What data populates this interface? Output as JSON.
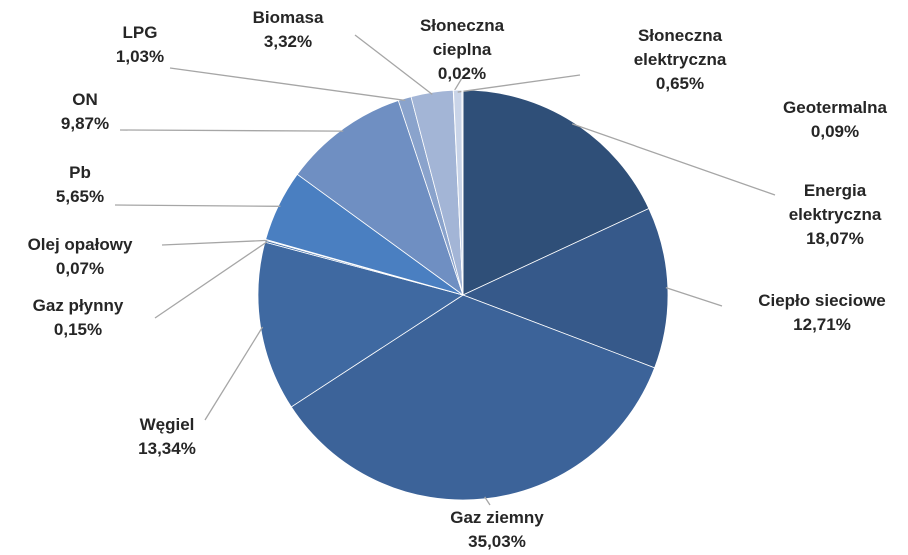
{
  "chart_data": {
    "type": "pie",
    "categories": [
      "Energia elektryczna",
      "Ciepło sieciowe",
      "Gaz ziemny",
      "Węgiel",
      "Gaz płynny",
      "Olej opałowy",
      "Pb",
      "ON",
      "LPG",
      "Biomasa",
      "Słoneczna cieplna",
      "Słoneczna elektryczna",
      "Geotermalna"
    ],
    "values": [
      18.07,
      12.71,
      35.03,
      13.34,
      0.15,
      0.07,
      5.65,
      9.87,
      1.03,
      3.32,
      0.02,
      0.65,
      0.09
    ],
    "value_labels": [
      "18,07%",
      "12,71%",
      "35,03%",
      "13,34%",
      "0,15%",
      "0,07%",
      "5,65%",
      "9,87%",
      "1,03%",
      "3,32%",
      "0,02%",
      "0,65%",
      "0,09%"
    ],
    "colors": [
      "#2f4f78",
      "#36598a",
      "#3c6399",
      "#3f69a1",
      "#4471ab",
      "#4775b0",
      "#4a7fc1",
      "#6f8fc2",
      "#8aa3cc",
      "#a3b5d6",
      "#bccae2",
      "#c9d4e8",
      "#d9e1ef"
    ]
  }
}
